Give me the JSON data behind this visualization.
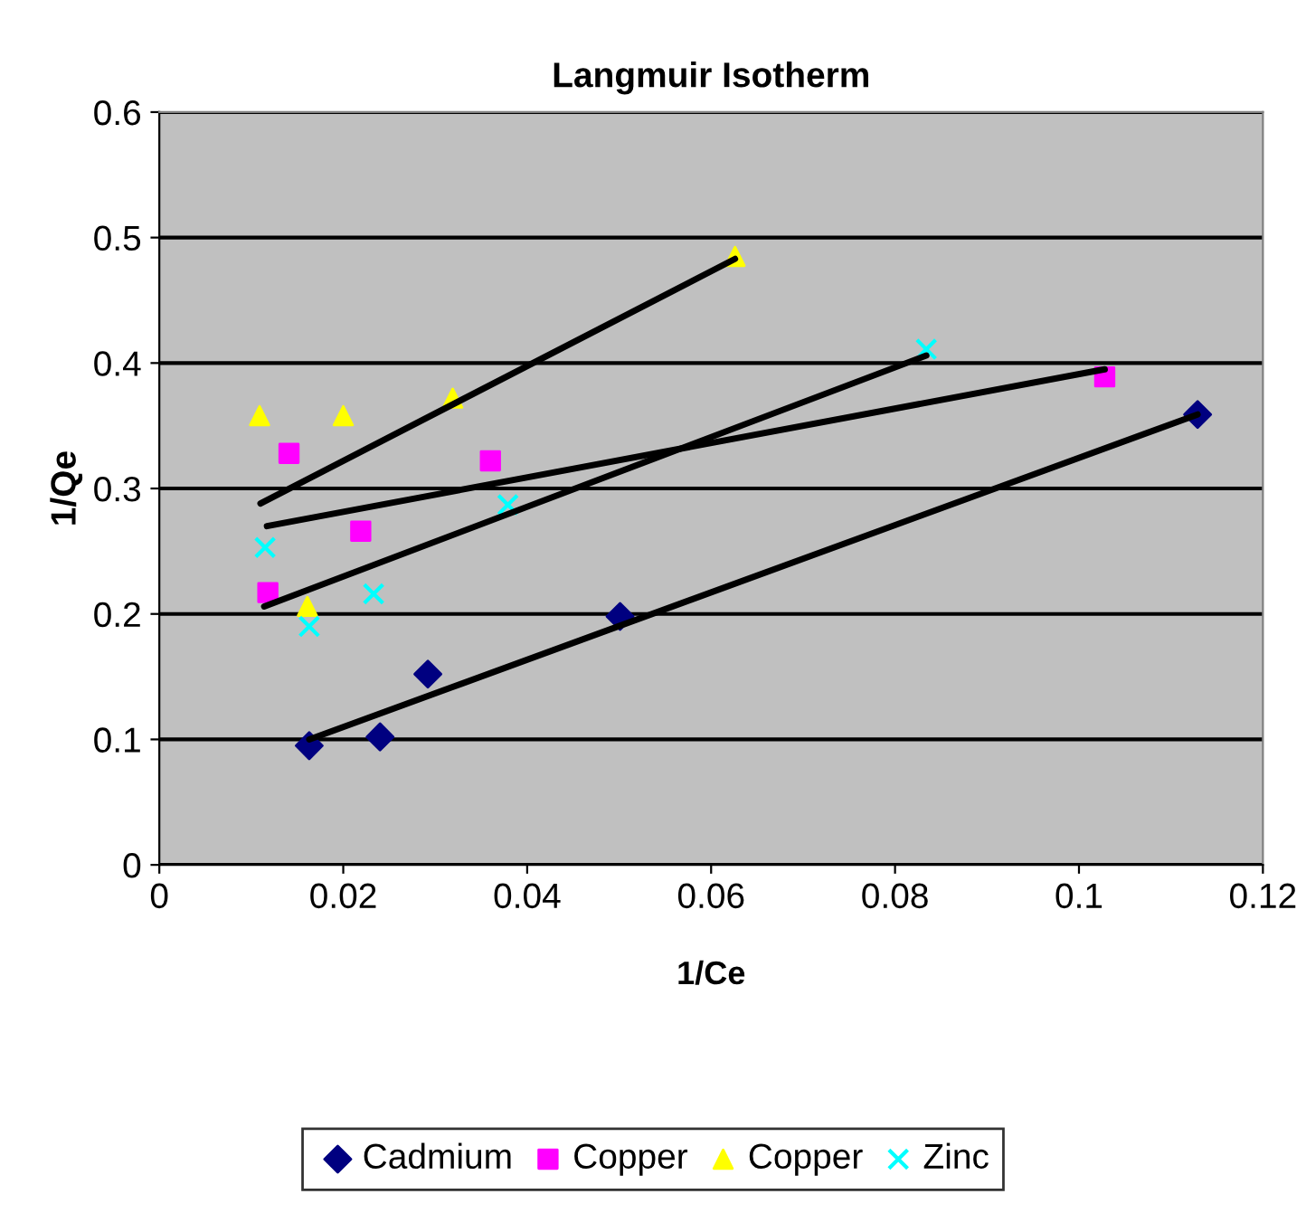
{
  "chart_data": {
    "type": "scatter",
    "title": "Langmuir Isotherm",
    "xlabel": "1/Ce",
    "ylabel": "1/Qe",
    "xlim": [
      0,
      0.12
    ],
    "ylim": [
      0,
      0.6
    ],
    "xticks": [
      0,
      0.02,
      0.04,
      0.06,
      0.08,
      0.1,
      0.12
    ],
    "yticks": [
      0,
      0.1,
      0.2,
      0.3,
      0.4,
      0.5,
      0.6
    ],
    "grid": "y",
    "legend": "bottom",
    "series": [
      {
        "name": "Cadmium",
        "color": "#000080",
        "marker": "diamond",
        "x": [
          0.0163,
          0.024,
          0.0292,
          0.0501,
          0.1129
        ],
        "values": [
          0.095,
          0.102,
          0.152,
          0.198,
          0.359
        ]
      },
      {
        "name": "Copper",
        "color": "#ff00ff",
        "marker": "square",
        "x": [
          0.0118,
          0.0141,
          0.0219,
          0.036,
          0.1028
        ],
        "values": [
          0.217,
          0.328,
          0.266,
          0.322,
          0.389
        ]
      },
      {
        "name": "Copper",
        "color": "#ffff00",
        "marker": "triangle",
        "x": [
          0.0109,
          0.0161,
          0.02,
          0.0319,
          0.0626
        ],
        "values": [
          0.358,
          0.206,
          0.358,
          0.372,
          0.485
        ]
      },
      {
        "name": "Zinc",
        "color": "#00ffff",
        "marker": "cross",
        "x": [
          0.0115,
          0.0163,
          0.0233,
          0.0379,
          0.0834
        ],
        "values": [
          0.253,
          0.19,
          0.216,
          0.287,
          0.411
        ]
      },
      {
        "type": "line",
        "color": "#000000",
        "x": [
          0.0163,
          0.1129
        ],
        "values": [
          0.1,
          0.359
        ]
      },
      {
        "type": "line",
        "color": "#000000",
        "x": [
          0.0117,
          0.1028
        ],
        "values": [
          0.27,
          0.395
        ]
      },
      {
        "type": "line",
        "color": "#000000",
        "x": [
          0.011,
          0.0626
        ],
        "values": [
          0.288,
          0.483
        ]
      },
      {
        "type": "line",
        "color": "#000000",
        "x": [
          0.0114,
          0.0834
        ],
        "values": [
          0.206,
          0.406
        ]
      }
    ]
  }
}
